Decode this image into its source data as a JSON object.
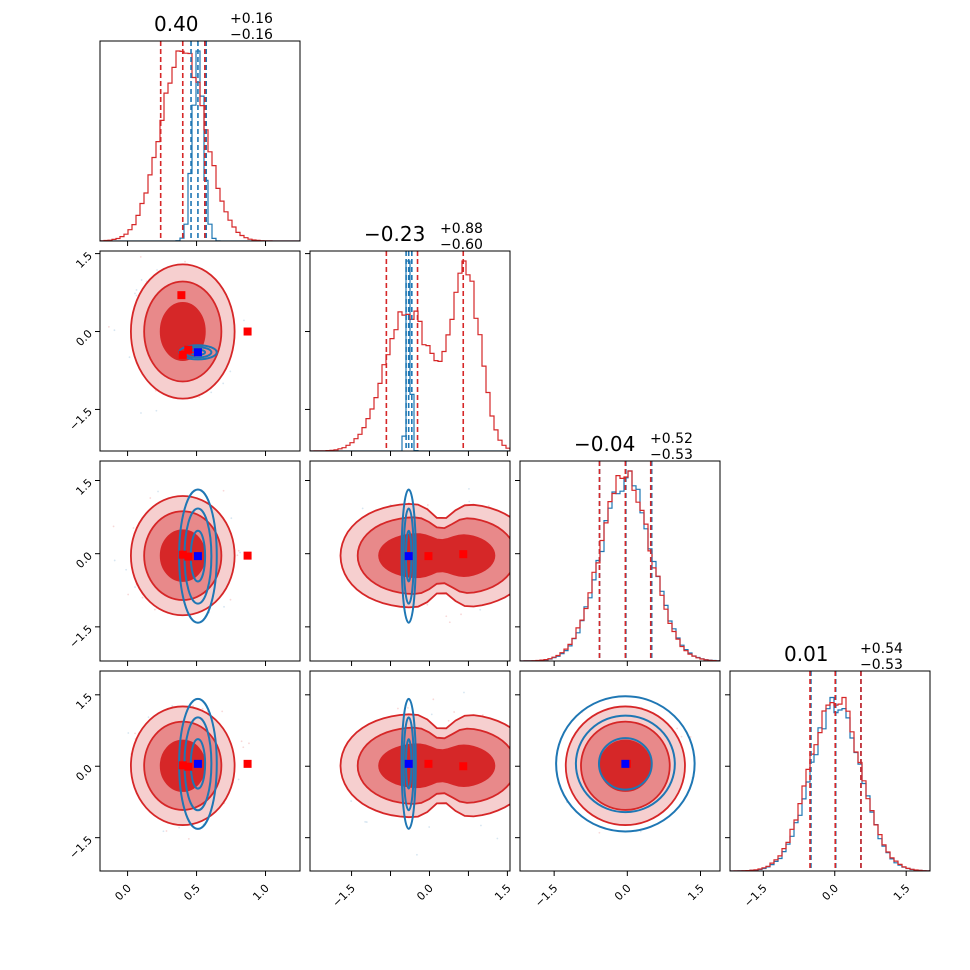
{
  "chart_data": {
    "type": "corner",
    "dimensions": 4,
    "grid": false,
    "colors": {
      "red": "#d62728",
      "red_mid": "#e8898a",
      "red_light": "#f6cfcf",
      "blue": "#1f77b4",
      "marker_red": "#ff0000",
      "marker_blue": "#0000ff"
    },
    "titles": [
      {
        "value": "0.40",
        "plus": "+0.16",
        "minus": "−0.16"
      },
      {
        "value": "−0.23",
        "plus": "+0.88",
        "minus": "−0.60"
      },
      {
        "value": "−0.04",
        "plus": "+0.52",
        "minus": "−0.53"
      },
      {
        "value": "0.01",
        "plus": "+0.54",
        "minus": "−0.53"
      }
    ],
    "axis_ranges": [
      [
        -0.2,
        1.25
      ],
      [
        -2.3,
        1.55
      ],
      [
        -2.2,
        1.9
      ],
      [
        -2.2,
        2.0
      ]
    ],
    "x_tick_values": [
      [
        0.0,
        0.5,
        1.0
      ],
      [
        -1.5,
        -0.75,
        0.0,
        0.75,
        1.5
      ],
      [
        -1.5,
        0.0,
        1.5
      ],
      [
        -1.5,
        0.0,
        1.5
      ]
    ],
    "x_tick_labels": [
      [
        "0.0",
        "0.5",
        "1.0"
      ],
      [
        "−1.5",
        "",
        "0.0",
        "",
        "1.5"
      ],
      [
        "−1.5",
        "0.0",
        "1.5"
      ],
      [
        "−1.5",
        "0.0",
        "1.5"
      ]
    ],
    "y_tick_values": [
      [],
      [
        1.5,
        0.0,
        -1.5
      ],
      [
        1.5,
        0.0,
        -1.5
      ],
      [
        1.5,
        0.0,
        -1.5
      ]
    ],
    "y_tick_labels": [
      [],
      [
        "1.5",
        "0.0",
        "−1.5"
      ],
      [
        "1.5",
        "0.0",
        "−1.5"
      ],
      [
        "1.5",
        "0.0",
        "−1.5"
      ]
    ],
    "diagonal": [
      {
        "red_quantiles": [
          0.24,
          0.4,
          0.56
        ],
        "blue_quantiles": [
          0.46,
          0.51,
          0.57
        ],
        "red_dist": {
          "mean": 0.4,
          "sd": 0.16
        },
        "blue_dist": {
          "mean": 0.51,
          "sd": 0.04
        },
        "ymax": 1.05
      },
      {
        "red_quantiles": [
          -0.83,
          -0.23,
          0.65
        ],
        "blue_quantiles": [
          -0.45,
          -0.4,
          -0.34
        ],
        "red_dist": {
          "mixture": [
            [
              0.56,
              -0.42,
              0.45
            ],
            [
              0.44,
              0.7,
              0.28
            ]
          ]
        },
        "blue_dist": {
          "mean": -0.4,
          "sd": 0.04
        },
        "ymax": 1.05
      },
      {
        "red_quantiles": [
          -0.57,
          -0.04,
          0.48
        ],
        "blue_quantiles": [
          -0.57,
          -0.03,
          0.5
        ],
        "red_dist": {
          "mean": -0.04,
          "sd": 0.52
        },
        "blue_dist": {
          "mean": -0.02,
          "sd": 0.52
        },
        "ymax": 1.05
      },
      {
        "red_quantiles": [
          -0.52,
          0.01,
          0.55
        ],
        "blue_quantiles": [
          -0.5,
          0.02,
          0.55
        ],
        "red_dist": {
          "mean": 0.01,
          "sd": 0.53
        },
        "blue_dist": {
          "mean": 0.02,
          "sd": 0.52
        },
        "ymax": 1.15
      }
    ],
    "pairs": [
      {
        "row": 1,
        "col": 0,
        "blue_center": [
          0.51,
          -0.4
        ],
        "blue_sd": [
          0.05,
          0.05
        ],
        "blue_ratio": 0.3,
        "red_markers": [
          [
            0.44,
            -0.35
          ],
          [
            0.4,
            -0.45
          ],
          [
            0.39,
            0.7
          ],
          [
            0.87,
            0.0
          ]
        ],
        "blue_marker": [
          0.51,
          -0.4
        ]
      },
      {
        "row": 2,
        "col": 0,
        "blue_center": [
          0.51,
          -0.05
        ],
        "blue_sd": [
          0.05,
          0.5
        ],
        "blue_ratio": 0.7,
        "red_markers": [
          [
            0.4,
            -0.02
          ],
          [
            0.44,
            -0.06
          ],
          [
            0.87,
            -0.04
          ]
        ],
        "blue_marker": [
          0.51,
          -0.05
        ]
      },
      {
        "row": 2,
        "col": 1,
        "blue_center": [
          -0.4,
          -0.05
        ],
        "blue_sd": [
          0.05,
          0.5
        ],
        "blue_ratio": 0.7,
        "red_markers": [
          [
            -0.02,
            -0.05
          ],
          [
            0.65,
            -0.01
          ]
        ],
        "blue_marker": [
          -0.4,
          -0.05
        ]
      },
      {
        "row": 3,
        "col": 0,
        "blue_center": [
          0.51,
          0.05
        ],
        "blue_sd": [
          0.05,
          0.5
        ],
        "blue_ratio": 0.7,
        "red_markers": [
          [
            0.4,
            0.02
          ],
          [
            0.44,
            -0.01
          ],
          [
            0.87,
            0.05
          ]
        ],
        "blue_marker": [
          0.51,
          0.05
        ]
      },
      {
        "row": 3,
        "col": 1,
        "blue_center": [
          -0.4,
          0.05
        ],
        "blue_sd": [
          0.05,
          0.5
        ],
        "blue_ratio": 0.7,
        "red_markers": [
          [
            -0.02,
            0.05
          ],
          [
            0.65,
            0.0
          ]
        ],
        "blue_marker": [
          -0.4,
          0.05
        ]
      },
      {
        "row": 3,
        "col": 2,
        "blue_center": [
          -0.04,
          0.05
        ],
        "blue_sd": [
          0.52,
          0.52
        ],
        "blue_ratio": 0.85,
        "red_markers": [
          [
            -0.01,
            0.05
          ]
        ],
        "blue_marker": [
          -0.04,
          0.05
        ]
      }
    ],
    "red_contour_levels": [
      0.39,
      0.86,
      0.99
    ],
    "blue_contour_levels": [
      0.39,
      0.86,
      0.99
    ]
  }
}
